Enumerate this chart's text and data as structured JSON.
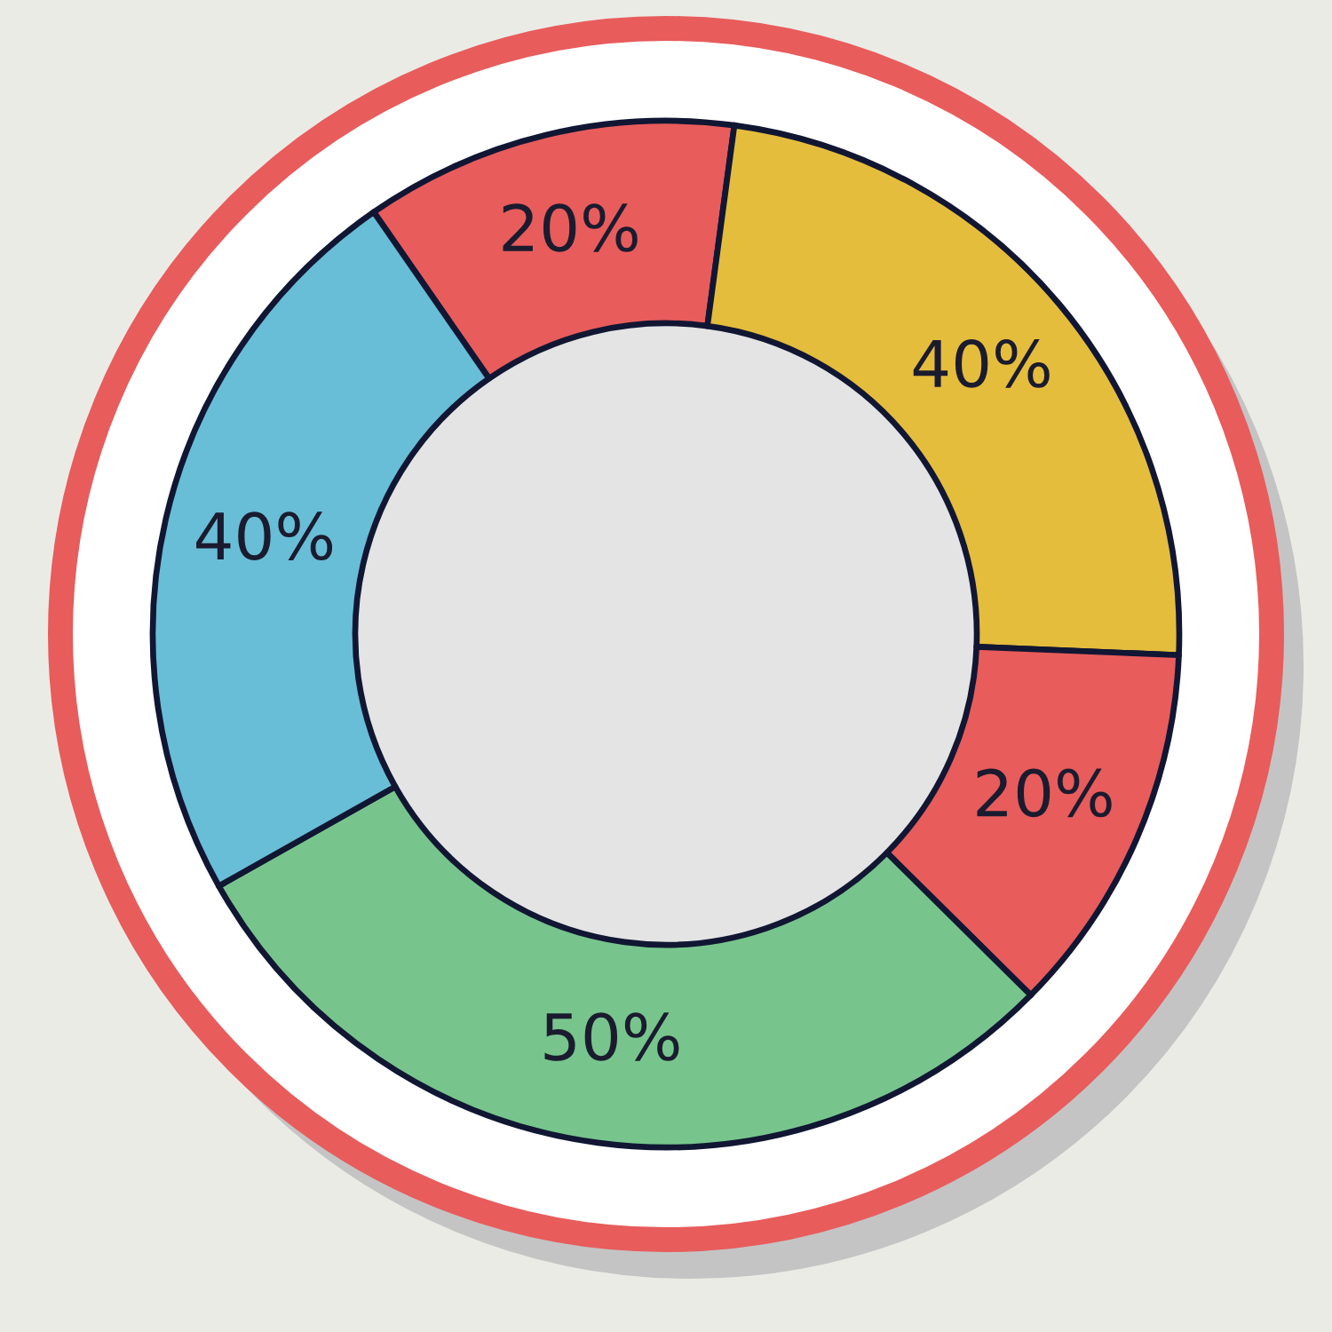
{
  "chart_data": {
    "type": "donut",
    "categories": [
      null,
      null,
      null,
      null,
      null
    ],
    "values": [
      20,
      40,
      20,
      50,
      40
    ],
    "colors": [
      "#e85c5c",
      "#e5bd3c",
      "#e85c5c",
      "#77c58c",
      "#68bed6"
    ],
    "value_labels": [
      "20%",
      "40%",
      "20%",
      "50%",
      "40%"
    ]
  }
}
